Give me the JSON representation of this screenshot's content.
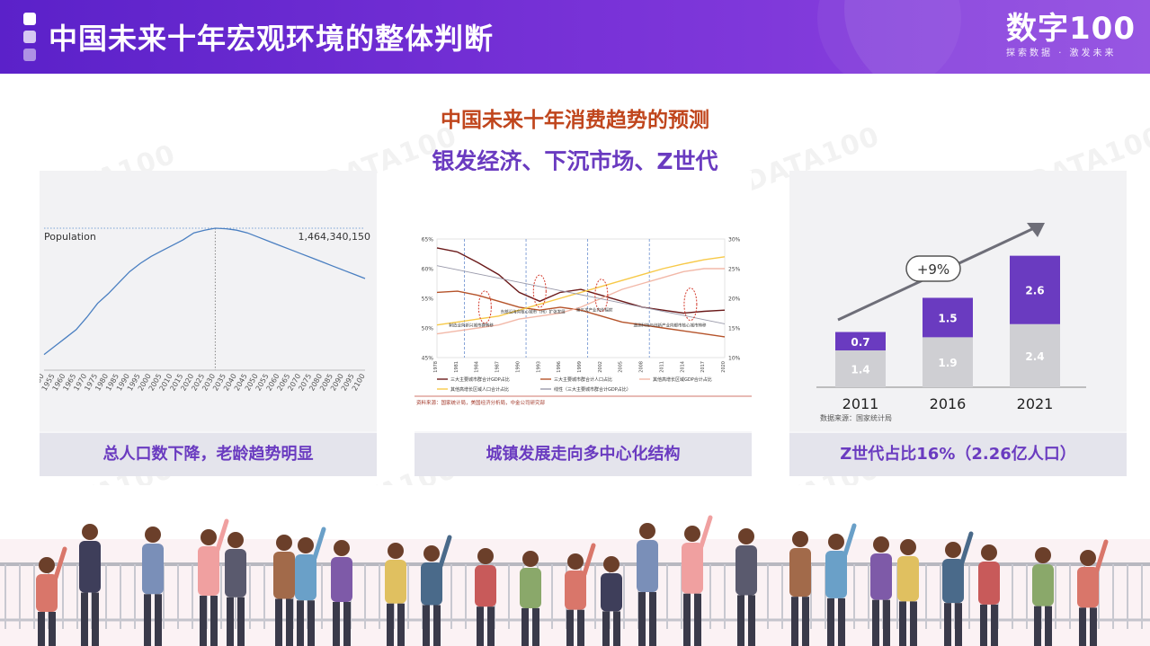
{
  "header": {
    "title": "中国未来十年宏观环境的整体判断",
    "logo_brand": "数字100",
    "logo_slogan": "探索数据 · 激发未来",
    "accent": "#6a2fd0"
  },
  "headings": {
    "main": "中国未来十年消费趋势的预测",
    "sub": "银发经济、下沉市场、Z世代"
  },
  "watermark": "DATA100",
  "panels": [
    {
      "caption": "总人口数下降，老龄趋势明显"
    },
    {
      "caption": "城镇发展走向多中心化结构"
    },
    {
      "caption": "Z世代占比16%（2.26亿人口）"
    }
  ],
  "chart_data": [
    {
      "type": "line",
      "series": [
        {
          "name": "Population",
          "x": [
            1950,
            1955,
            1960,
            1965,
            1970,
            1975,
            1980,
            1985,
            1990,
            1995,
            2000,
            2005,
            2010,
            2015,
            2020,
            2025,
            2030,
            2035,
            2040,
            2045,
            2050,
            2055,
            2060,
            2065,
            2070,
            2075,
            2080,
            2085,
            2090,
            2095,
            2100
          ],
          "values": [
            0.55,
            0.61,
            0.67,
            0.73,
            0.82,
            0.92,
            0.99,
            1.07,
            1.15,
            1.21,
            1.26,
            1.3,
            1.34,
            1.38,
            1.43,
            1.45,
            1.464,
            1.46,
            1.45,
            1.43,
            1.4,
            1.37,
            1.34,
            1.31,
            1.28,
            1.25,
            1.22,
            1.19,
            1.16,
            1.13,
            1.1
          ]
        }
      ],
      "annotations": [
        "Population",
        "1,464,340,150"
      ],
      "xlabel": "",
      "ylabel": "",
      "xticks": [
        "1950",
        "1955",
        "1960",
        "1965",
        "1970",
        "1975",
        "1980",
        "1985",
        "1990",
        "1995",
        "2000",
        "2005",
        "2010",
        "2015",
        "2020",
        "2025",
        "2030",
        "2035",
        "2040",
        "2045",
        "2050",
        "2055",
        "2060",
        "2065",
        "2070",
        "2075",
        "2080",
        "2085",
        "2090",
        "2095",
        "2100"
      ],
      "grid": false,
      "colors": [
        "#4a7fc1"
      ]
    },
    {
      "type": "line",
      "title": "",
      "y_left_ticks": [
        "65%",
        "60%",
        "55%",
        "50%",
        "45%"
      ],
      "y_right_ticks": [
        "30%",
        "25%",
        "20%",
        "15%",
        "10%"
      ],
      "ylim_left": [
        45,
        65
      ],
      "ylim_right": [
        10,
        30
      ],
      "x": [
        1978,
        1981,
        1984,
        1987,
        1990,
        1993,
        1996,
        1999,
        2002,
        2005,
        2008,
        2011,
        2014,
        2017,
        2020
      ],
      "xticks": [
        "1978",
        "1981",
        "1984",
        "1987",
        "1990",
        "1993",
        "1996",
        "1999",
        "2002",
        "2005",
        "2008",
        "2011",
        "2014",
        "2017",
        "2020"
      ],
      "series": [
        {
          "name": "三大主要城市群合计GDP占比",
          "axis": "left",
          "color": "#6b1a1a",
          "values": [
            63.5,
            62.8,
            61.0,
            59.0,
            56.0,
            54.5,
            56.0,
            56.5,
            55.5,
            54.5,
            53.5,
            53.0,
            52.5,
            52.8,
            53.0
          ]
        },
        {
          "name": "三大主要城市群合计人口占比",
          "axis": "right",
          "color": "#b5532a",
          "values": [
            21.0,
            21.2,
            20.5,
            19.5,
            18.5,
            18.0,
            18.5,
            18.0,
            17.0,
            16.0,
            15.5,
            15.0,
            14.5,
            14.0,
            13.5
          ]
        },
        {
          "name": "其他高增长区域GDP合计占比",
          "axis": "right",
          "color": "#f2b8a8",
          "values": [
            14.0,
            14.5,
            15.0,
            15.5,
            16.5,
            17.0,
            17.5,
            18.5,
            20.0,
            21.5,
            22.5,
            23.5,
            24.5,
            25.0,
            25.0
          ]
        },
        {
          "name": "其他高增长区域人口合计占比",
          "axis": "left",
          "color": "#f7c948",
          "values": [
            50.5,
            51.0,
            51.5,
            52.0,
            53.0,
            54.0,
            55.0,
            56.0,
            57.0,
            58.0,
            59.0,
            60.0,
            60.8,
            61.5,
            62.0
          ]
        },
        {
          "name": "线性（三大主要城市群合计GDP占比）",
          "axis": "left",
          "color": "#9999aa",
          "values": [
            60.5,
            59.8,
            59.1,
            58.4,
            57.7,
            57.0,
            56.3,
            55.6,
            54.9,
            54.2,
            53.5,
            52.8,
            52.1,
            51.4,
            50.7
          ]
        }
      ],
      "annotations": [
        "制造业向新兴城市群转移",
        "东部沿海向核心城市（州）扩张发展",
        "第三次产业向外辐射",
        "遥测科技与创新产业向都市核心城市转移"
      ],
      "source_note": "资料来源：国家统计局，美国经济分析局，中金公司研究部",
      "grid": false
    },
    {
      "type": "bar",
      "stacked": true,
      "categories": [
        "2011",
        "2016",
        "2021"
      ],
      "series": [
        {
          "name": "",
          "values": [
            1.4,
            1.9,
            2.4
          ],
          "color": "#cfcfd3"
        },
        {
          "name": "",
          "values": [
            0.7,
            1.5,
            2.6
          ],
          "color": "#6a3bc0"
        }
      ],
      "annotations": [
        "+9%"
      ],
      "source_note": "数据来源：国家统计局",
      "ylim": [
        0,
        5.5
      ],
      "grid": false
    }
  ]
}
